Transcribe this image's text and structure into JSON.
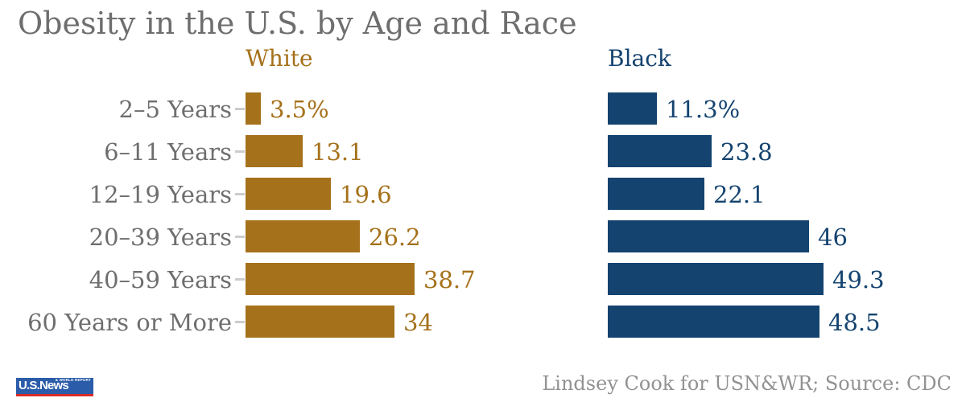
{
  "title": "Obesity in the U.S. by Age and Race",
  "attribution": "Lindsey Cook for USN&WR; Source: CDC",
  "logo": {
    "main": "U.S.News",
    "sub": "& WORLD REPORT"
  },
  "colors": {
    "title_gray": "#6e6e6e",
    "label_gray": "#6e6e6e",
    "tick_gray": "#cccccc",
    "attribution_gray": "#929292",
    "white_series": "#a5711b",
    "black_series": "#14436f",
    "logo_blue": "#2a5caa",
    "logo_red": "#d92b27"
  },
  "chart_data": {
    "type": "bar",
    "orientation": "horizontal",
    "title": "Obesity in the U.S. by Age and Race",
    "categories": [
      "2–5 Years",
      "6–11 Years",
      "12–19 Years",
      "20–39 Years",
      "40–59 Years",
      "60 Years or More"
    ],
    "series": [
      {
        "name": "White",
        "color": "#a5711b",
        "values": [
          3.5,
          13.1,
          19.6,
          26.2,
          38.7,
          34
        ],
        "labels": [
          "3.5%",
          "13.1",
          "19.6",
          "26.2",
          "38.7",
          "34"
        ]
      },
      {
        "name": "Black",
        "color": "#14436f",
        "values": [
          11.3,
          23.8,
          22.1,
          46,
          49.3,
          48.5
        ],
        "labels": [
          "11.3%",
          "23.8",
          "22.1",
          "46",
          "49.3",
          "48.5"
        ]
      }
    ],
    "xlim": [
      0,
      55
    ],
    "grid": false,
    "value_labels_shown": true,
    "legend_position": "column-headers-above-each-panel"
  }
}
